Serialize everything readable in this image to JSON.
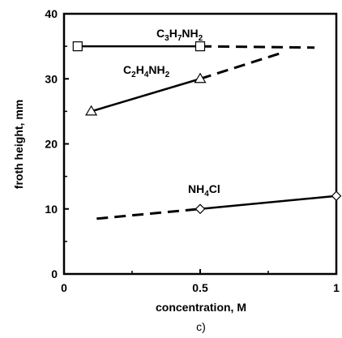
{
  "chart_data": {
    "type": "line",
    "xlabel": "concentration, M",
    "ylabel": "froth height, mm",
    "panel_label": "c)",
    "xlim": [
      0,
      1
    ],
    "ylim": [
      0,
      40
    ],
    "xticks": [
      0,
      0.5,
      1
    ],
    "yticks": [
      0,
      10,
      20,
      30,
      40
    ],
    "grid": false,
    "series": [
      {
        "name": "C3H7NH2",
        "label_parts": [
          [
            "C",
            false
          ],
          [
            "3",
            true
          ],
          [
            "H",
            false
          ],
          [
            "7",
            true
          ],
          [
            "NH",
            false
          ],
          [
            "2",
            true
          ]
        ],
        "marker": "square",
        "measured": {
          "x": [
            0.05,
            0.5
          ],
          "y": [
            35,
            35
          ]
        },
        "extrapolated": {
          "x": [
            0.5,
            0.92
          ],
          "y": [
            35,
            34.8
          ]
        }
      },
      {
        "name": "C2H4NH2",
        "label_parts": [
          [
            "C",
            false
          ],
          [
            "2",
            true
          ],
          [
            "H",
            false
          ],
          [
            "4",
            true
          ],
          [
            "NH",
            false
          ],
          [
            "2",
            true
          ]
        ],
        "marker": "triangle",
        "measured": {
          "x": [
            0.1,
            0.5
          ],
          "y": [
            25,
            30
          ]
        },
        "extrapolated": {
          "x": [
            0.5,
            0.8
          ],
          "y": [
            30,
            34
          ]
        }
      },
      {
        "name": "NH4Cl",
        "label_parts": [
          [
            "NH",
            false
          ],
          [
            "4",
            true
          ],
          [
            "Cl",
            false
          ]
        ],
        "marker": "diamond",
        "measured": {
          "x": [
            0.5,
            1.0
          ],
          "y": [
            10,
            12
          ]
        },
        "extrapolated": {
          "x": [
            0.12,
            0.5
          ],
          "y": [
            8.5,
            10
          ]
        }
      }
    ]
  }
}
